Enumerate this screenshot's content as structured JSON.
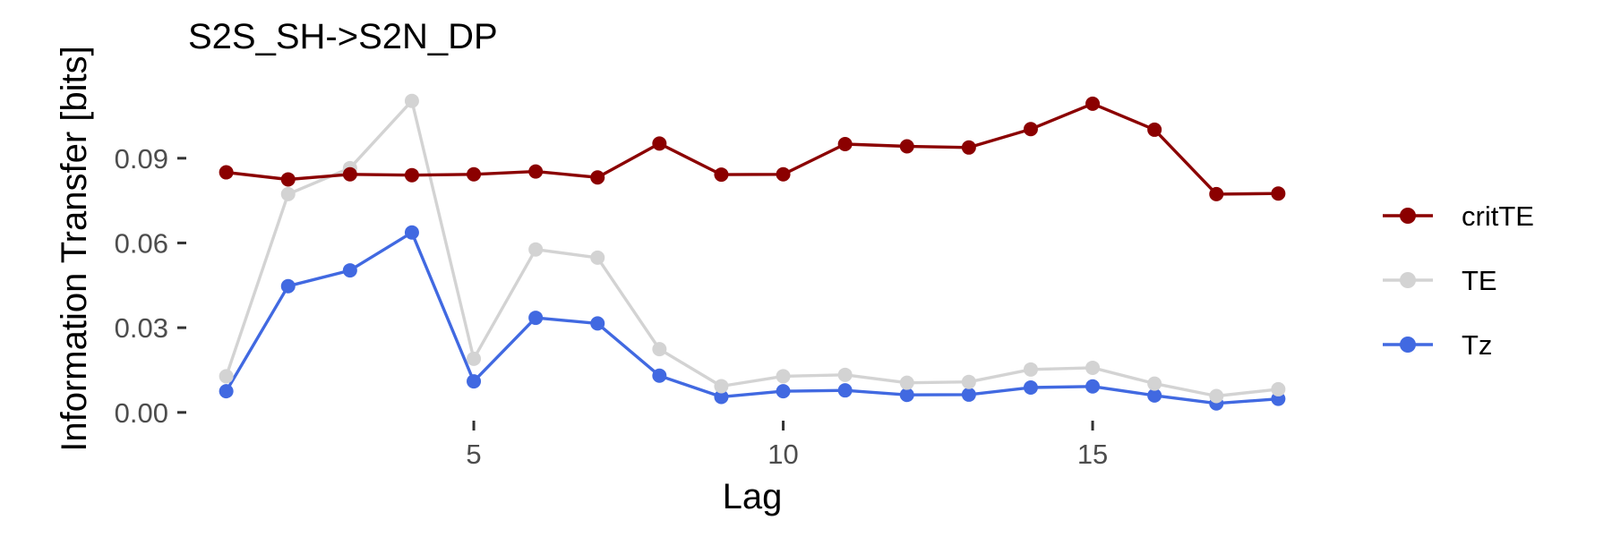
{
  "chart_data": {
    "type": "line",
    "title": "S2S_SH->S2N_DP",
    "xlabel": "Lag",
    "ylabel": "Information Transfer [bits]",
    "x": [
      1,
      2,
      3,
      4,
      5,
      6,
      7,
      8,
      9,
      10,
      11,
      12,
      13,
      14,
      15,
      16,
      17,
      18
    ],
    "xlim": [
      0.6,
      18.4
    ],
    "ylim": [
      -0.0045,
      0.1175
    ],
    "x_ticks": [
      5,
      10,
      15
    ],
    "x_tick_labels": [
      "5",
      "10",
      "15"
    ],
    "y_ticks": [
      0,
      0.03,
      0.06,
      0.09
    ],
    "y_tick_labels": [
      "0.00",
      "0.03",
      "0.06",
      "0.09"
    ],
    "grid": false,
    "legend_position": "right",
    "series": [
      {
        "name": "critTE",
        "color": "#8b0000",
        "values": [
          0.085,
          0.0825,
          0.0843,
          0.084,
          0.0843,
          0.0853,
          0.0832,
          0.0952,
          0.0842,
          0.0843,
          0.095,
          0.0942,
          0.0938,
          0.1003,
          0.1093,
          0.1001,
          0.0773,
          0.0775
        ]
      },
      {
        "name": "TE",
        "color": "#d3d3d3",
        "values": [
          0.0128,
          0.0773,
          0.0865,
          0.1103,
          0.019,
          0.0577,
          0.0548,
          0.0224,
          0.0093,
          0.0128,
          0.0133,
          0.0105,
          0.0108,
          0.0152,
          0.0158,
          0.0102,
          0.0058,
          0.0082
        ]
      },
      {
        "name": "Tz",
        "color": "#4169e1",
        "values": [
          0.0075,
          0.0447,
          0.0503,
          0.0637,
          0.011,
          0.0335,
          0.0315,
          0.013,
          0.0055,
          0.0075,
          0.0078,
          0.0062,
          0.0063,
          0.0088,
          0.0092,
          0.006,
          0.0032,
          0.0048
        ]
      }
    ]
  }
}
